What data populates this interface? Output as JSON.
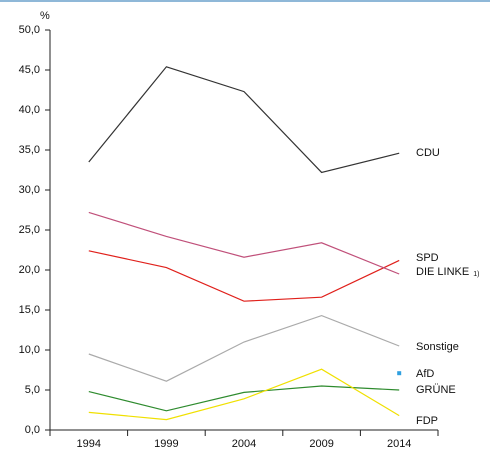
{
  "chart_data": {
    "type": "line",
    "y_label": "%",
    "categories": [
      "1994",
      "1999",
      "2004",
      "2009",
      "2014"
    ],
    "ylim": [
      0,
      50
    ],
    "yticks": [
      {
        "value": 0,
        "label": "0,0"
      },
      {
        "value": 5,
        "label": "5,0"
      },
      {
        "value": 10,
        "label": "10,0"
      },
      {
        "value": 15,
        "label": "15,0"
      },
      {
        "value": 20,
        "label": "20,0"
      },
      {
        "value": 25,
        "label": "25,0"
      },
      {
        "value": 30,
        "label": "30,0"
      },
      {
        "value": 35,
        "label": "35,0"
      },
      {
        "value": 40,
        "label": "40,0"
      },
      {
        "value": 45,
        "label": "45,0"
      },
      {
        "value": 50,
        "label": "50,0"
      }
    ],
    "series": [
      {
        "name": "CDU",
        "color": "#333333",
        "values": [
          33.5,
          45.4,
          42.3,
          32.2,
          34.6
        ]
      },
      {
        "name": "SPD",
        "color": "#e0201b",
        "values": [
          22.4,
          20.3,
          16.1,
          16.6,
          21.2
        ]
      },
      {
        "name": "DIE LINKE",
        "note": "1)",
        "color": "#c0507a",
        "values": [
          27.2,
          24.2,
          21.6,
          23.4,
          19.5
        ]
      },
      {
        "name": "Sonstige",
        "color": "#aaaaaa",
        "values": [
          9.5,
          6.1,
          11.0,
          14.3,
          10.5
        ]
      },
      {
        "name": "AfD",
        "color": "#2fa0e0",
        "values": [
          null,
          null,
          null,
          null,
          7.1
        ]
      },
      {
        "name": "GRÜNE",
        "color": "#2e8b2e",
        "values": [
          4.8,
          2.4,
          4.7,
          5.5,
          5.0
        ]
      },
      {
        "name": "FDP",
        "color": "#f0e000",
        "values": [
          2.2,
          1.3,
          3.9,
          7.6,
          1.8
        ]
      }
    ]
  }
}
